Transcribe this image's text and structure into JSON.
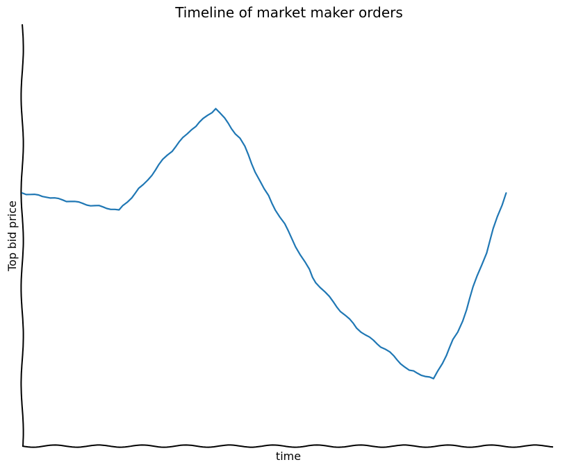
{
  "chart_data": {
    "type": "line",
    "title": "Timeline of market maker orders",
    "xlabel": "time",
    "ylabel": "Top bid price",
    "xlim": [
      0,
      22
    ],
    "ylim": [
      0,
      10
    ],
    "grid": false,
    "xticks": [],
    "yticks": [],
    "style": "xkcd",
    "series": [
      {
        "color": "#1f77b4",
        "x": [
          0,
          1,
          2,
          3,
          4,
          5,
          6,
          7,
          8,
          9,
          10,
          11,
          12,
          13,
          14,
          15,
          16,
          17,
          18,
          19,
          20
        ],
        "y": [
          6.0,
          5.9,
          5.8,
          5.7,
          5.6,
          6.2,
          6.9,
          7.5,
          8.0,
          7.3,
          6.1,
          5.1,
          4.0,
          3.3,
          2.7,
          2.3,
          1.8,
          1.6,
          2.7,
          4.3,
          6.0
        ]
      }
    ]
  }
}
